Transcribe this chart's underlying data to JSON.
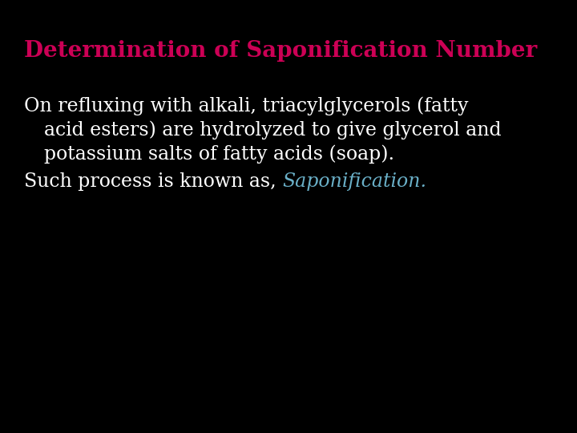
{
  "background_color": "#000000",
  "title": "Determination of Saponification Number",
  "title_color": "#CC0055",
  "title_fontsize": 20,
  "body_color": "#ffffff",
  "body_fontsize": 17,
  "line4_prefix": "Such process is known as, ",
  "line4_italic": "Saponification.",
  "line4_italic_color": "#6ab0c8"
}
